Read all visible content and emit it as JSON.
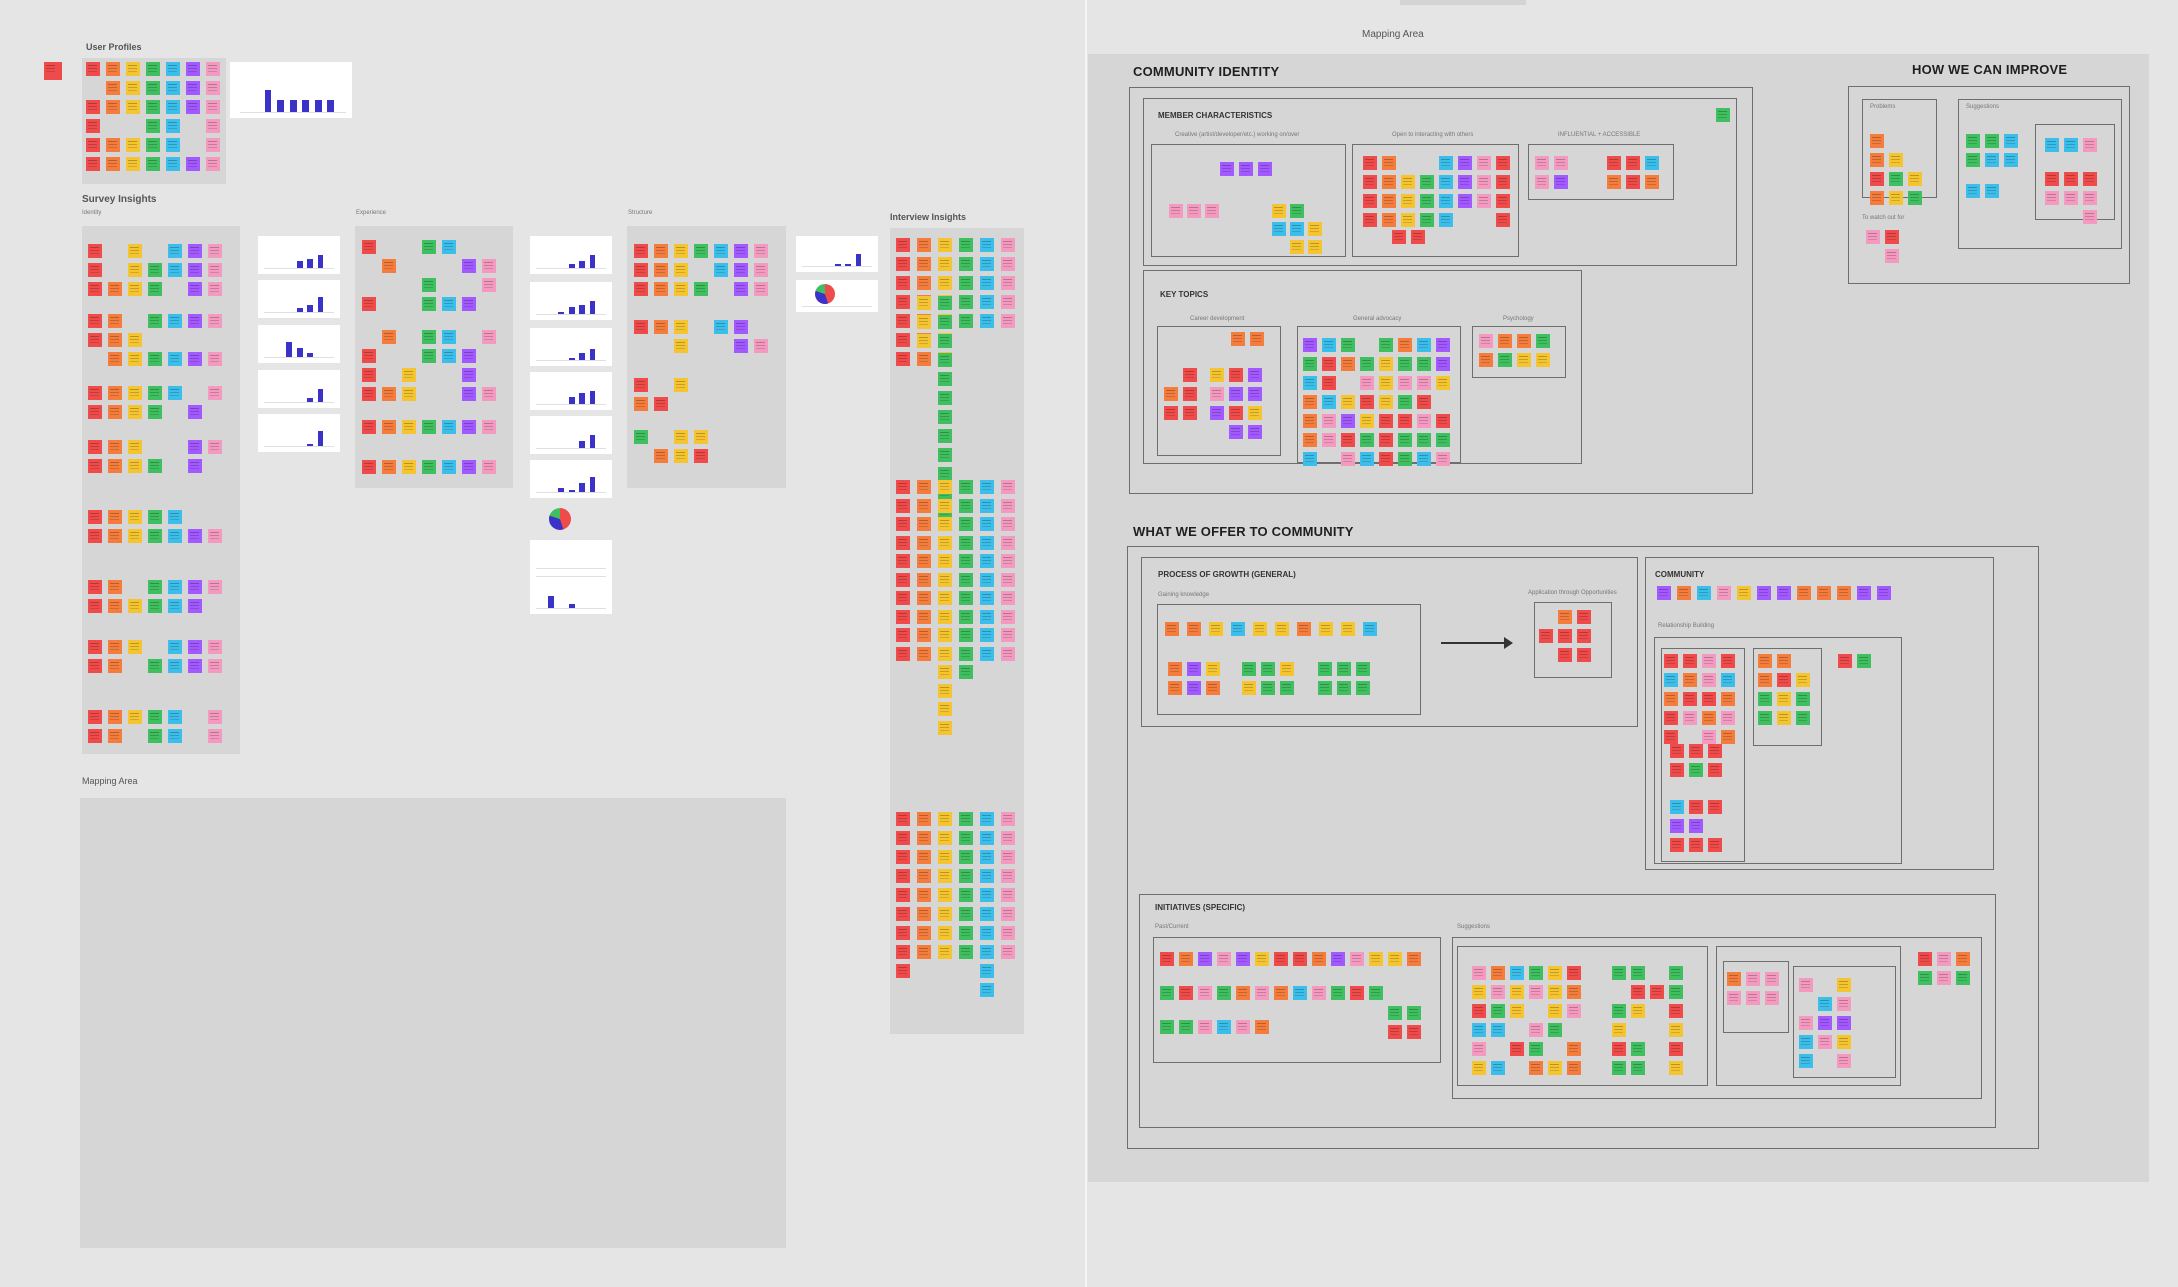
{
  "colors": {
    "canvas": "#e5e5e5",
    "panel": "#d6d6d6",
    "chart_bar": "#3b32c8",
    "stickies": [
      "#ef4b4b",
      "#f47c3c",
      "#f5c531",
      "#3fbf5f",
      "#3bbfea",
      "#a259ff",
      "#f49ac1",
      "#c4c4c4"
    ]
  },
  "left": {
    "user_profiles_title": "User Profiles",
    "survey_insights_title": "Survey Insights",
    "identity_label": "Identity",
    "experience_label": "Experience",
    "structure_label": "Structure",
    "interview_insights_title": "Interview Insights",
    "mapping_area_title": "Mapping Area"
  },
  "right": {
    "mapping_area_title": "Mapping Area",
    "community_identity": {
      "title": "COMMUNITY IDENTITY",
      "member_characteristics": "MEMBER CHARACTERISTICS",
      "mc_group_1": "Creative (artist/developer/etc.) working on/over",
      "mc_group_2": "Open to interacting with others",
      "mc_group_3": "INFLUENTIAL + ACCESSIBLE",
      "key_topics": "KEY TOPICS",
      "kt_group_1": "Career development",
      "kt_group_2": "General advocacy",
      "kt_group_3": "Psychology"
    },
    "how_we_can_improve": {
      "title": "HOW WE CAN IMPROVE",
      "problems": "Problems",
      "suggestions": "Suggestions",
      "to_watch_out_for": "To watch out for"
    },
    "what_we_offer": {
      "title": "WHAT WE OFFER TO COMMUNITY",
      "process_of_growth": "PROCESS OF GROWTH (GENERAL)",
      "gaining_knowledge": "Gaining knowledge",
      "application": "Application through Opportunities",
      "community": "COMMUNITY",
      "relationship_building": "Relationship Building",
      "initiatives": "INITIATIVES (SPECIFIC)",
      "past_current": "Past/Current",
      "suggestions": "Suggestions"
    }
  }
}
